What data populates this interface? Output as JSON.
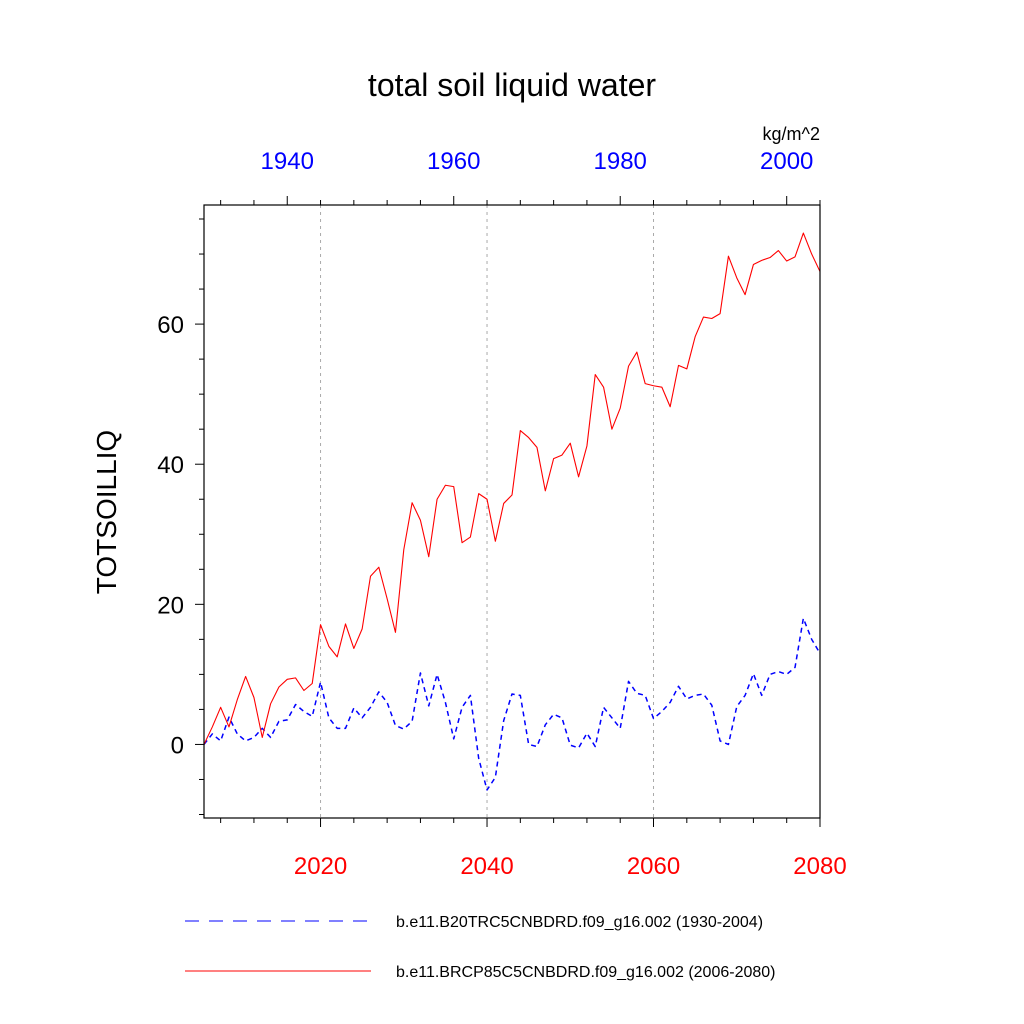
{
  "chart_data": {
    "type": "line",
    "title": "total soil liquid water",
    "units": "kg/m^2",
    "ylabel": "TOTSOILLIQ",
    "ylim": [
      -10.5,
      77
    ],
    "y_ticks": [
      0,
      20,
      40,
      60
    ],
    "y_tick_labels": [
      "0",
      "20",
      "40",
      "60"
    ],
    "grid": "vertical dotted at major bottom ticks",
    "bottom_axis": {
      "range": [
        2006,
        2080
      ],
      "ticks": [
        2020,
        2040,
        2060,
        2080
      ],
      "tick_labels": [
        "2020",
        "2040",
        "2060",
        "2080"
      ],
      "color": "#ff0000"
    },
    "top_axis": {
      "range": [
        1930,
        2004
      ],
      "ticks": [
        1940,
        1960,
        1980,
        2000
      ],
      "tick_labels": [
        "1940",
        "1960",
        "1980",
        "2000"
      ],
      "color": "#0000ff"
    },
    "series": [
      {
        "name": "b.e11.B20TRC5CNBDRD.f09_g16.002 (1930-2004)",
        "axis": "top",
        "color": "#0000ff",
        "style": "dashed",
        "x": [
          1930,
          1931,
          1932,
          1933,
          1934,
          1935,
          1936,
          1937,
          1938,
          1939,
          1940,
          1941,
          1942,
          1943,
          1944,
          1945,
          1946,
          1947,
          1948,
          1949,
          1950,
          1951,
          1952,
          1953,
          1954,
          1955,
          1956,
          1957,
          1958,
          1959,
          1960,
          1961,
          1962,
          1963,
          1964,
          1965,
          1966,
          1967,
          1968,
          1969,
          1970,
          1971,
          1972,
          1973,
          1974,
          1975,
          1976,
          1977,
          1978,
          1979,
          1980,
          1981,
          1982,
          1983,
          1984,
          1985,
          1986,
          1987,
          1988,
          1989,
          1990,
          1991,
          1992,
          1993,
          1994,
          1995,
          1996,
          1997,
          1998,
          1999,
          2000,
          2001,
          2002,
          2003,
          2004
        ],
        "values": [
          0,
          1.5,
          0.5,
          3.9,
          1.5,
          0.5,
          1.0,
          2.3,
          1.0,
          3.3,
          3.5,
          5.7,
          4.7,
          4.0,
          8.9,
          3.8,
          2.3,
          2.3,
          5.2,
          3.8,
          5.3,
          7.5,
          6.0,
          2.7,
          2.2,
          3.3,
          10.2,
          5.5,
          10.0,
          6.0,
          0.8,
          5.3,
          7.0,
          -2.0,
          -6.5,
          -4.7,
          3.4,
          7.2,
          7.0,
          0,
          -0.3,
          2.8,
          4.3,
          3.8,
          -0.1,
          -0.5,
          1.6,
          -0.3,
          5.3,
          3.8,
          2.3,
          9.0,
          7.3,
          7.0,
          3.7,
          4.7,
          6.0,
          8.3,
          6.5,
          7.0,
          7.2,
          5.6,
          0.5,
          0,
          5.4,
          7.0,
          10.1,
          7.0,
          10.0,
          10.4,
          10.0,
          11.0,
          18.0,
          15.0,
          13.0
        ]
      },
      {
        "name": "b.e11.BRCP85C5CNBDRD.f09_g16.002 (2006-2080)",
        "axis": "bottom",
        "color": "#ff0000",
        "style": "solid",
        "x": [
          2006,
          2007,
          2008,
          2009,
          2010,
          2011,
          2012,
          2013,
          2014,
          2015,
          2016,
          2017,
          2018,
          2019,
          2020,
          2021,
          2022,
          2023,
          2024,
          2025,
          2026,
          2027,
          2028,
          2029,
          2030,
          2031,
          2032,
          2033,
          2034,
          2035,
          2036,
          2037,
          2038,
          2039,
          2040,
          2041,
          2042,
          2043,
          2044,
          2045,
          2046,
          2047,
          2048,
          2049,
          2050,
          2051,
          2052,
          2053,
          2054,
          2055,
          2056,
          2057,
          2058,
          2059,
          2060,
          2061,
          2062,
          2063,
          2064,
          2065,
          2066,
          2067,
          2068,
          2069,
          2070,
          2071,
          2072,
          2073,
          2074,
          2075,
          2076,
          2077,
          2078,
          2079,
          2080
        ],
        "values": [
          0,
          2.5,
          5.3,
          2.5,
          6.4,
          9.7,
          6.7,
          1.0,
          5.8,
          8.2,
          9.3,
          9.5,
          7.7,
          8.7,
          17.1,
          14.0,
          12.5,
          17.2,
          13.7,
          16.5,
          24.0,
          25.3,
          20.8,
          16.0,
          27.8,
          34.5,
          32.0,
          26.8,
          35.0,
          37.0,
          36.8,
          28.8,
          29.6,
          35.8,
          35.0,
          29.0,
          34.4,
          35.6,
          44.8,
          43.8,
          42.4,
          36.2,
          40.8,
          41.3,
          43.0,
          38.2,
          42.6,
          52.8,
          51.0,
          45.0,
          48.0,
          54.0,
          56.0,
          51.5,
          51.2,
          51.0,
          48.2,
          54.1,
          53.6,
          58.2,
          61.0,
          60.8,
          61.5,
          69.7,
          66.6,
          64.2,
          68.5,
          69.1,
          69.5,
          70.5,
          69.0,
          69.6,
          73.0,
          70.0,
          67.5
        ]
      }
    ]
  }
}
